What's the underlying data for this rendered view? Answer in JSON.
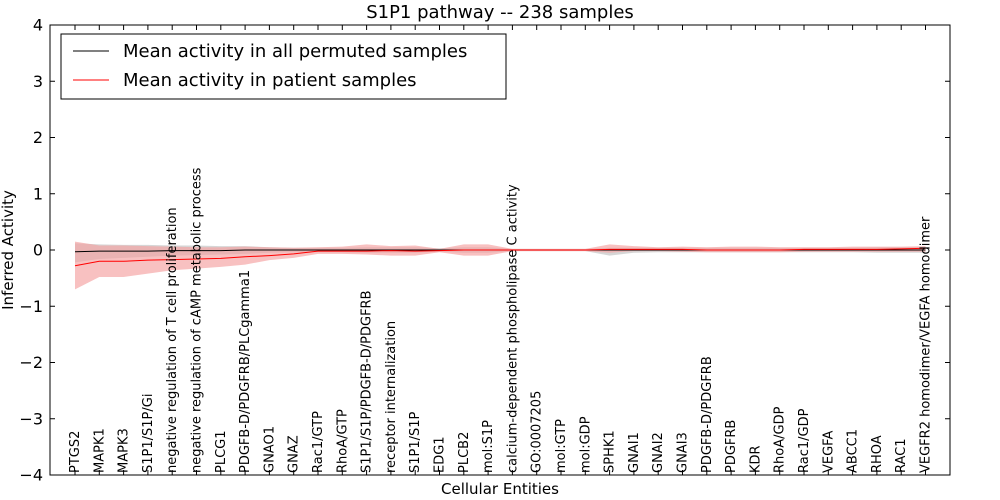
{
  "chart_data": {
    "type": "line",
    "title": "S1P1 pathway -- 238 samples",
    "xlabel": "Cellular Entities",
    "ylabel": "Inferred Activity",
    "ylim": [
      -4,
      4
    ],
    "yticks": [
      -4,
      -3,
      -2,
      -1,
      0,
      1,
      2,
      3,
      4
    ],
    "ytick_labels": [
      "−4",
      "−3",
      "−2",
      "−1",
      "0",
      "1",
      "2",
      "3",
      "4"
    ],
    "grid": false,
    "legend_position": "top-left",
    "categories": [
      "PTGS2",
      "MAPK1",
      "MAPK3",
      "S1P1/S1P/Gi",
      "negative regulation of T cell proliferation",
      "negative regulation of cAMP metabolic process",
      "PLCG1",
      "PDGFB-D/PDGFRB/PLCgamma1",
      "GNAO1",
      "GNAZ",
      "Rac1/GTP",
      "RhoA/GTP",
      "S1P1/S1P/PDGFB-D/PDGFRB",
      "receptor internalization",
      "S1P1/S1P",
      "EDG1",
      "PLCB2",
      "mol:S1P",
      "calcium-dependent phospholipase C activity",
      "GO:0007205",
      "mol:GTP",
      "mol:GDP",
      "SPHK1",
      "GNAI1",
      "GNAI2",
      "GNAI3",
      "PDGFB-D/PDGFRB",
      "PDGFRB",
      "KDR",
      "RhoA/GDP",
      "Rac1/GDP",
      "VEGFA",
      "ABCC1",
      "RHOA",
      "RAC1",
      "VEGFR2 homodimer/VEGFA homodimer"
    ],
    "series": [
      {
        "name": "Mean activity in all permuted samples",
        "color": "#000000",
        "band_color": "#bbbbbb",
        "values": [
          -0.03,
          -0.02,
          -0.02,
          -0.02,
          -0.01,
          -0.01,
          -0.01,
          0.0,
          0.0,
          0.0,
          0.0,
          0.0,
          0.0,
          0.0,
          0.0,
          0.0,
          0.0,
          0.0,
          0.0,
          0.0,
          0.0,
          0.0,
          0.0,
          0.0,
          0.0,
          0.0,
          0.0,
          0.0,
          0.0,
          0.0,
          0.0,
          0.0,
          0.0,
          0.0,
          0.0,
          0.0
        ],
        "lower": [
          -0.22,
          -0.16,
          -0.14,
          -0.12,
          -0.1,
          -0.09,
          -0.08,
          -0.07,
          -0.05,
          -0.04,
          -0.04,
          -0.04,
          -0.05,
          -0.05,
          -0.05,
          -0.03,
          -0.05,
          -0.05,
          -0.02,
          -0.02,
          -0.02,
          -0.02,
          -0.1,
          -0.05,
          -0.04,
          -0.04,
          -0.04,
          -0.04,
          -0.04,
          -0.04,
          -0.04,
          -0.04,
          -0.04,
          -0.05,
          -0.05,
          -0.05
        ],
        "upper": [
          0.12,
          0.1,
          0.09,
          0.09,
          0.08,
          0.08,
          0.07,
          0.07,
          0.05,
          0.04,
          0.04,
          0.04,
          0.05,
          0.05,
          0.05,
          0.03,
          0.05,
          0.05,
          0.02,
          0.02,
          0.02,
          0.02,
          0.04,
          0.04,
          0.04,
          0.04,
          0.04,
          0.04,
          0.04,
          0.04,
          0.04,
          0.04,
          0.04,
          0.05,
          0.05,
          0.05
        ]
      },
      {
        "name": "Mean activity in patient samples",
        "color": "#ff0000",
        "band_color": "#f4a0a0",
        "values": [
          -0.28,
          -0.2,
          -0.2,
          -0.18,
          -0.17,
          -0.16,
          -0.15,
          -0.12,
          -0.1,
          -0.07,
          -0.02,
          -0.02,
          -0.02,
          -0.01,
          -0.02,
          -0.01,
          0.0,
          0.0,
          0.0,
          0.0,
          0.0,
          0.0,
          0.01,
          0.01,
          0.01,
          0.01,
          0.0,
          0.0,
          0.0,
          0.0,
          0.01,
          0.01,
          0.01,
          0.01,
          0.02,
          0.03
        ],
        "lower": [
          -0.7,
          -0.48,
          -0.48,
          -0.42,
          -0.36,
          -0.33,
          -0.3,
          -0.26,
          -0.18,
          -0.14,
          -0.07,
          -0.07,
          -0.08,
          -0.1,
          -0.1,
          -0.04,
          -0.1,
          -0.1,
          -0.02,
          -0.02,
          -0.02,
          -0.02,
          -0.05,
          -0.02,
          -0.02,
          -0.03,
          -0.04,
          -0.04,
          -0.04,
          -0.04,
          -0.03,
          -0.03,
          -0.03,
          -0.03,
          -0.03,
          -0.03
        ],
        "upper": [
          0.15,
          0.08,
          0.08,
          0.07,
          0.06,
          0.05,
          0.05,
          0.06,
          0.05,
          0.04,
          0.05,
          0.06,
          0.1,
          0.07,
          0.08,
          0.02,
          0.1,
          0.1,
          0.02,
          0.02,
          0.02,
          0.02,
          0.1,
          0.07,
          0.05,
          0.06,
          0.05,
          0.06,
          0.06,
          0.05,
          0.05,
          0.05,
          0.06,
          0.06,
          0.06,
          0.07
        ]
      }
    ]
  }
}
